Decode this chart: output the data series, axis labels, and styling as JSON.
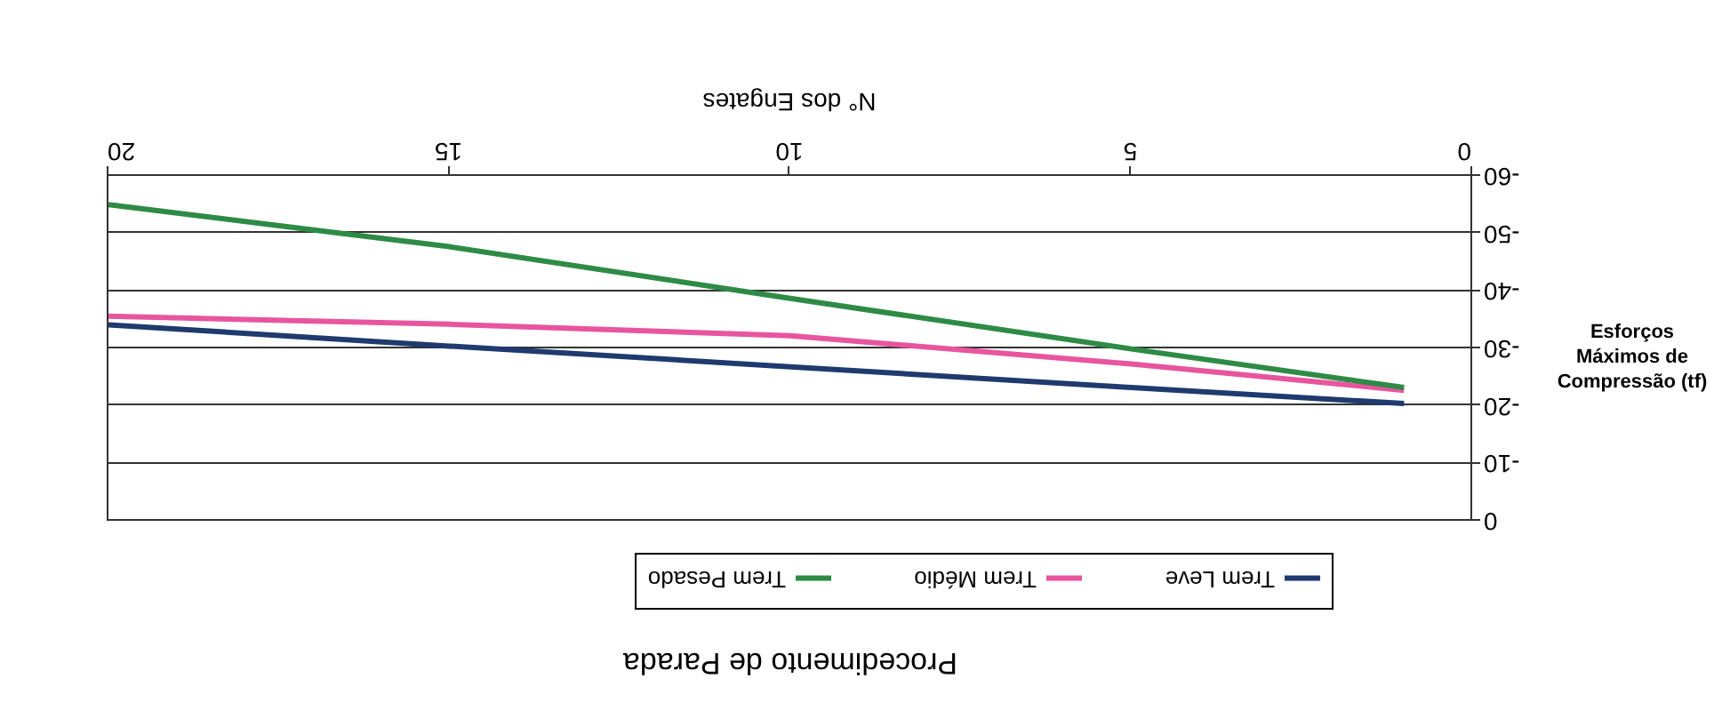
{
  "chart_data": {
    "type": "line",
    "title": "Procedimento de Parada",
    "xlabel": "N° dos Engates",
    "ylabel": "Esforços Máximos de Compressão (tf)",
    "x": [
      1,
      5,
      10,
      15,
      20
    ],
    "series": [
      {
        "name": "Trem Leve",
        "color": "#1f3a6e",
        "values": [
          -20.4,
          -23.2,
          -26.8,
          -30.4,
          -34.1
        ]
      },
      {
        "name": "Trem Médio",
        "color": "#e8559f",
        "values": [
          -22.7,
          -27.3,
          -32.2,
          -34.2,
          -35.6
        ]
      },
      {
        "name": "Trem Pesado",
        "color": "#2e8b45",
        "values": [
          -23.2,
          -29.9,
          -38.7,
          -47.7,
          -55.0
        ]
      }
    ],
    "xlim": [
      20,
      0
    ],
    "xticks": [
      0,
      5,
      10,
      15,
      20
    ],
    "ylim": [
      0,
      -60
    ],
    "yticks": [
      0,
      -10,
      -20,
      -30,
      -40,
      -50,
      -60
    ],
    "grid": "y",
    "legend": "bottom",
    "marker": "none",
    "line_style": "solid"
  }
}
